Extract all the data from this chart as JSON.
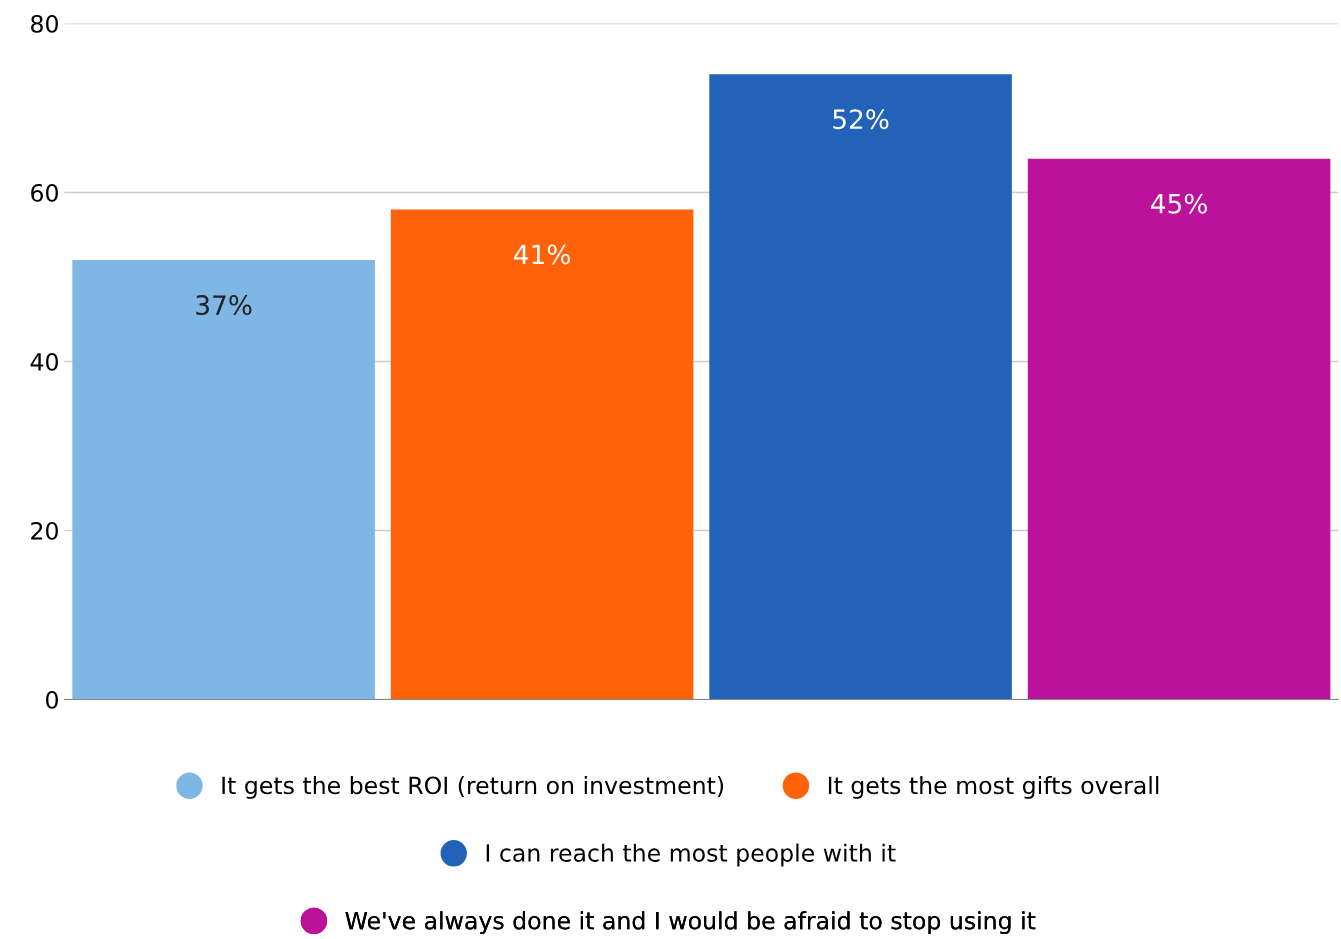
{
  "chart_data": {
    "type": "bar",
    "categories": [
      null,
      null,
      null,
      null
    ],
    "series": [
      {
        "name": "It gets the best ROI (return on investment)",
        "color": "#7eb6e6",
        "values": [
          52,
          null,
          null,
          null
        ]
      },
      {
        "name": "It gets the most gifts overall",
        "color": "#ff6208",
        "values": [
          null,
          58,
          null,
          null
        ]
      },
      {
        "name": "I can reach the most people with it",
        "color": "#2263b9",
        "values": [
          null,
          null,
          74,
          null
        ]
      },
      {
        "name": "We've always done it and I would be afraid to stop using it",
        "color": "#bb119b",
        "values": [
          null,
          null,
          null,
          64
        ]
      }
    ],
    "annotations": [
      {
        "text": "37%",
        "y": 52
      },
      {
        "text": "41%",
        "y": 58
      },
      {
        "text": "52%",
        "y": 74
      },
      {
        "text": "45%",
        "y": 64
      }
    ],
    "ylim": [
      0,
      80
    ],
    "yticks": [
      0,
      20,
      40,
      60,
      80
    ],
    "grid": "y",
    "legend": "bottom",
    "tick_labels": "y"
  }
}
